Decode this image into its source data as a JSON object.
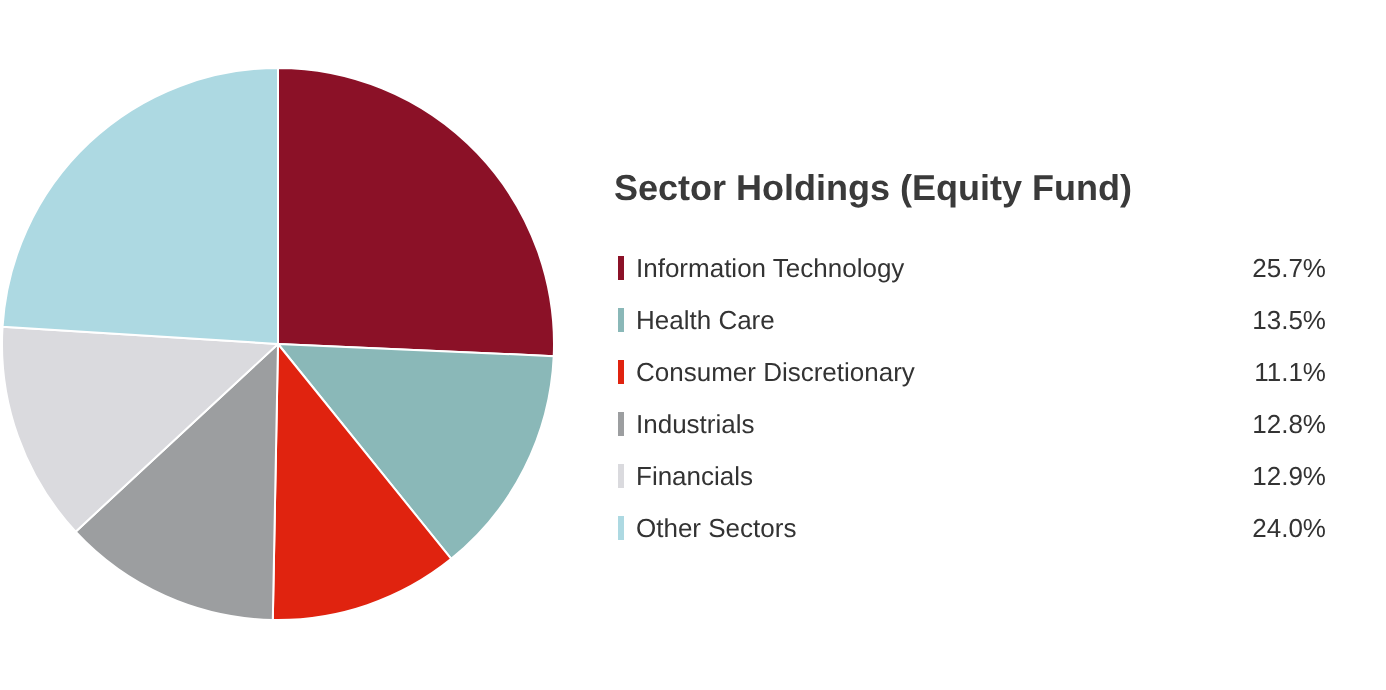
{
  "chart_data": {
    "type": "pie",
    "title": "Sector Holdings (Equity Fund)",
    "categories": [
      "Information Technology",
      "Health Care",
      "Consumer Discretionary",
      "Industrials",
      "Financials",
      "Other Sectors"
    ],
    "values": [
      25.7,
      13.5,
      11.1,
      12.8,
      12.9,
      24.0
    ],
    "value_labels": [
      "25.7%",
      "13.5%",
      "11.1%",
      "12.8%",
      "12.9%",
      "24.0%"
    ],
    "colors": [
      "#8b1127",
      "#8ab8b8",
      "#e0230f",
      "#9c9ea0",
      "#dadade",
      "#add9e2"
    ],
    "legend": "right"
  }
}
